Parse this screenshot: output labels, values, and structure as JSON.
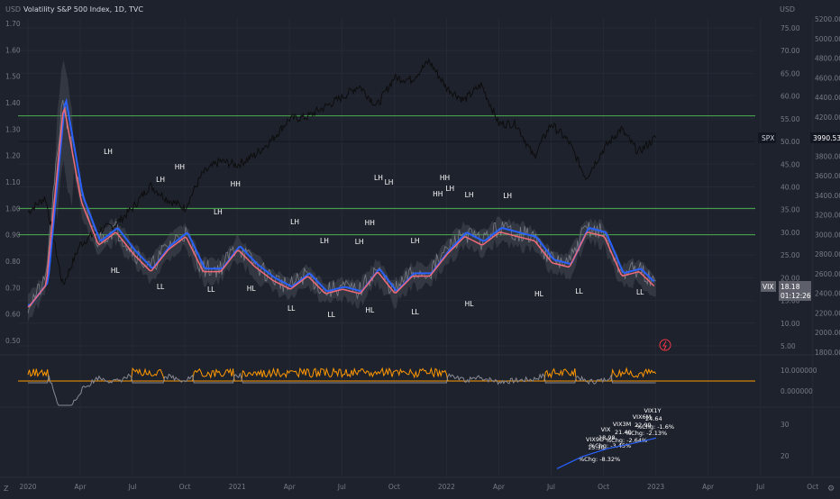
{
  "header": {
    "title": "Volatility S&P 500 Index, 1D, TVC",
    "left_unit": "USD",
    "right_unit": "USD"
  },
  "scales": {
    "left_ticks": [
      "1.70",
      "1.60",
      "1.50",
      "1.40",
      "1.30",
      "1.20",
      "1.10",
      "1.00",
      "0.90",
      "0.80",
      "0.70",
      "0.60",
      "0.50"
    ],
    "right_vix_ticks": [
      "75.00",
      "70.00",
      "65.00",
      "60.00",
      "55.00",
      "50.00",
      "45.00",
      "40.00",
      "35.00",
      "30.00",
      "25.00",
      "20.00",
      "15.00",
      "10.00",
      "5.00"
    ],
    "right_spx_ticks": [
      "5200.00",
      "5000.00",
      "4800.00",
      "4600.00",
      "4400.00",
      "4200.00",
      "4000.00",
      "3800.00",
      "3600.00",
      "3400.00",
      "3200.00",
      "3000.00",
      "2800.00",
      "2600.00",
      "2400.00",
      "2200.00",
      "2000.00",
      "1800.00"
    ],
    "osc_ticks": [
      "10.000000",
      "0.000000"
    ],
    "lower_ticks": [
      "30",
      "20"
    ],
    "time_axis": [
      "2020",
      "Apr",
      "Jul",
      "Oct",
      "2021",
      "Apr",
      "Jul",
      "Oct",
      "2022",
      "Apr",
      "Jul",
      "Oct",
      "2023",
      "Apr",
      "Jul",
      "Oct"
    ],
    "corner_left": "Z",
    "corner_right": "⚙"
  },
  "price_tags": {
    "spx": {
      "label": "SPX",
      "value": "3990.53"
    },
    "vix": {
      "label": "VIX",
      "value": "18.18",
      "countdown": "01:12:26"
    }
  },
  "swing_labels": [
    "LH",
    "HH",
    "LH",
    "LH",
    "HH",
    "LH",
    "LH",
    "HH",
    "HH",
    "LH",
    "LH",
    "LH",
    "LH",
    "HH",
    "LH",
    "LH",
    "LH",
    "HL",
    "LL",
    "LL",
    "HL",
    "LL",
    "LL",
    "HL",
    "LL",
    "HL",
    "HL",
    "LL",
    "LL"
  ],
  "term_structure": {
    "labels": [
      {
        "name": "VIX9D",
        "value": "15.30",
        "change": "%Chg: -8.32%"
      },
      {
        "name": "VIX",
        "value": "18.98",
        "change": "%Chg: -3.45%"
      },
      {
        "name": "VIX3M",
        "value": "21.40",
        "change": "%Chg: -2.64%"
      },
      {
        "name": "VIX6M",
        "value": "22.99",
        "change": "%Chg: -2.13%"
      },
      {
        "name": "VIX1Y",
        "value": "24.64",
        "change": "%Chg: -1.6%"
      }
    ]
  },
  "colors": {
    "background": "#1e222d",
    "spx_line": "#0d0d0d",
    "vix_band": "#5a5e66",
    "smooth_blue": "#2962ff",
    "smooth_red": "#f06b7a",
    "levels": "#4caf50",
    "oscillator": "#ff9800",
    "oscillator_low": "#868993",
    "term_line": "#2962ff"
  },
  "chart_data": {
    "type": "line",
    "x_range": [
      "2020-01",
      "2023-02"
    ],
    "level_lines": [
      {
        "left_value": 1.35,
        "color": "green"
      },
      {
        "left_value": 1.0,
        "color": "green"
      },
      {
        "left_value": 0.9,
        "color": "green"
      }
    ],
    "hline_right_vix": 50,
    "series": [
      {
        "name": "SPX",
        "x": [
          "2020-01",
          "2020-02",
          "2020-03",
          "2020-04",
          "2020-05",
          "2020-06",
          "2020-07",
          "2020-08",
          "2020-09",
          "2020-10",
          "2020-11",
          "2020-12",
          "2021-01",
          "2021-02",
          "2021-03",
          "2021-04",
          "2021-05",
          "2021-06",
          "2021-07",
          "2021-08",
          "2021-09",
          "2021-10",
          "2021-11",
          "2021-12",
          "2022-01",
          "2022-02",
          "2022-03",
          "2022-04",
          "2022-05",
          "2022-06",
          "2022-07",
          "2022-08",
          "2022-09",
          "2022-10",
          "2022-11",
          "2022-12",
          "2023-01"
        ],
        "values": [
          3230,
          3380,
          2480,
          2900,
          3040,
          3100,
          3270,
          3500,
          3360,
          3270,
          3620,
          3750,
          3710,
          3810,
          3970,
          4180,
          4200,
          4300,
          4400,
          4520,
          4310,
          4600,
          4580,
          4770,
          4500,
          4370,
          4530,
          4130,
          4130,
          3790,
          4130,
          3950,
          3580,
          3870,
          4080,
          3840,
          3990.53
        ]
      },
      {
        "name": "VIX",
        "x": [
          "2020-01",
          "2020-02",
          "2020-03",
          "2020-04",
          "2020-05",
          "2020-06",
          "2020-07",
          "2020-08",
          "2020-09",
          "2020-10",
          "2020-11",
          "2020-12",
          "2021-01",
          "2021-02",
          "2021-03",
          "2021-04",
          "2021-05",
          "2021-06",
          "2021-07",
          "2021-08",
          "2021-09",
          "2021-10",
          "2021-11",
          "2021-12",
          "2022-01",
          "2022-02",
          "2022-03",
          "2022-04",
          "2022-05",
          "2022-06",
          "2022-07",
          "2022-08",
          "2022-09",
          "2022-10",
          "2022-11",
          "2022-12",
          "2023-01"
        ],
        "values": [
          14,
          19,
          60,
          38,
          28,
          31,
          26,
          22,
          27,
          30,
          22,
          22,
          27,
          23,
          20,
          18,
          21,
          17,
          18,
          17,
          22,
          17,
          21,
          21,
          26,
          30,
          28,
          31,
          30,
          29,
          24,
          23,
          31,
          30,
          21,
          22,
          18.18
        ]
      }
    ],
    "term_structure": {
      "names": [
        "VIX9D",
        "VIX",
        "VIX3M",
        "VIX6M",
        "VIX1Y"
      ],
      "values": [
        15.3,
        18.98,
        21.4,
        22.99,
        24.64
      ],
      "pct_change": [
        -8.32,
        -3.45,
        -2.64,
        -2.13,
        -1.6
      ]
    }
  }
}
